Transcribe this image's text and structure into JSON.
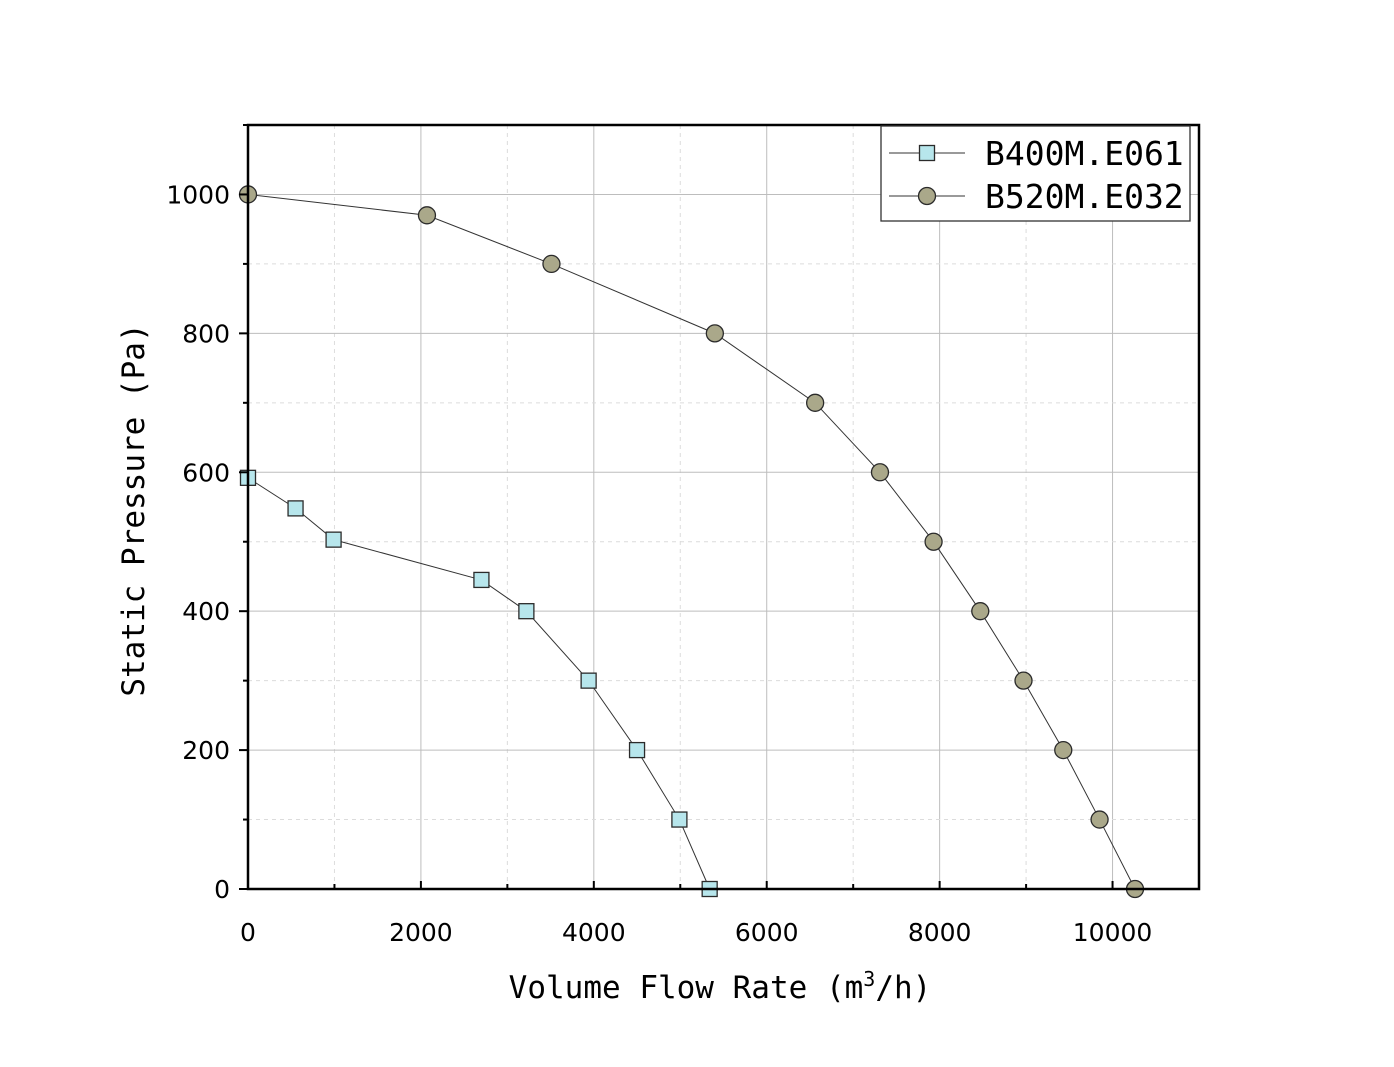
{
  "chart_data": {
    "type": "line",
    "title": "",
    "xlabel": "Volume Flow Rate (m",
    "xlabel_sup": "3",
    "xlabel_tail": "/h)",
    "ylabel": "Static Pressure (Pa)",
    "xlim": [
      0,
      11000
    ],
    "ylim": [
      0,
      1100
    ],
    "x_ticks": [
      0,
      2000,
      4000,
      6000,
      8000,
      10000
    ],
    "y_ticks": [
      0,
      200,
      400,
      600,
      800,
      1000
    ],
    "x_tick_labels": [
      "0",
      "2000",
      "4000",
      "6000",
      "8000",
      "10000"
    ],
    "y_tick_labels": [
      "0",
      "200",
      "400",
      "600",
      "800",
      "1000"
    ],
    "grid": true,
    "legend_position": "top-right",
    "series": [
      {
        "name": "B400M.E061",
        "marker": "square",
        "color": "#b7e6ec",
        "x": [
          0,
          550,
          990,
          2700,
          3220,
          3940,
          4500,
          4990,
          5340
        ],
        "y": [
          592,
          548,
          503,
          445,
          400,
          300,
          200,
          100,
          0
        ]
      },
      {
        "name": "B520M.E032",
        "marker": "circle",
        "color": "#aaa88a",
        "x": [
          0,
          2070,
          3510,
          5400,
          6560,
          7310,
          7930,
          8470,
          8970,
          9430,
          9850,
          10260
        ],
        "y": [
          1000,
          970,
          900,
          800,
          700,
          600,
          500,
          400,
          300,
          200,
          100,
          0
        ]
      }
    ]
  }
}
